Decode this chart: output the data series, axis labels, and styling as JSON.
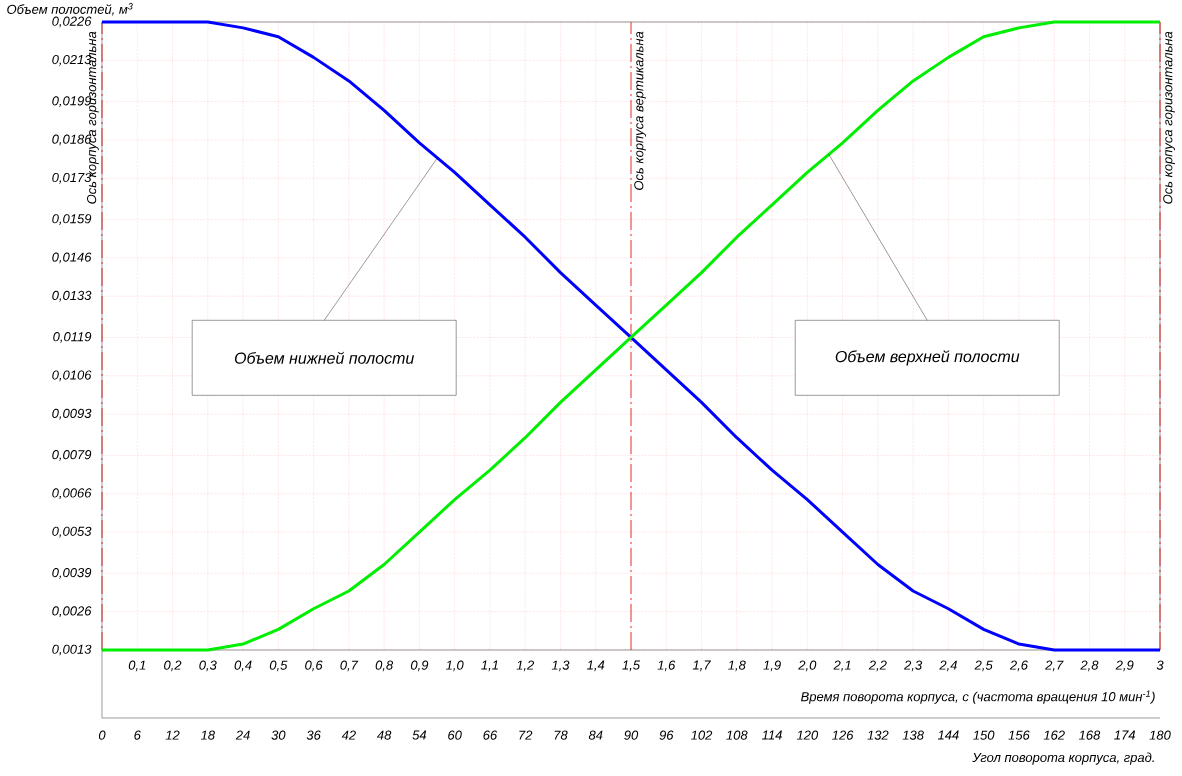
{
  "chart_data": {
    "type": "line",
    "xlabel": "Время поворота корпуса, с (частота вращения 10 мин$^{-1}$)",
    "ylabel": "Объем полостей, м$^{3}$",
    "x2label": "Угол поворота корпуса, град.",
    "x": [
      0,
      0.1,
      0.2,
      0.3,
      0.4,
      0.5,
      0.6,
      0.7,
      0.8,
      0.9,
      1.0,
      1.1,
      1.2,
      1.3,
      1.4,
      1.5,
      1.6,
      1.7,
      1.8,
      1.9,
      2.0,
      2.1,
      2.2,
      2.3,
      2.4,
      2.5,
      2.6,
      2.7,
      2.8,
      2.9,
      3.0
    ],
    "series": [
      {
        "color": "#0000ff",
        "values": [
          0.0226,
          0.0226,
          0.0226,
          0.0226,
          0.0224,
          0.0221,
          0.0214,
          0.0206,
          0.0196,
          0.0185,
          0.0175,
          0.0164,
          0.0153,
          0.0141,
          0.013,
          0.0119,
          0.0108,
          0.0097,
          0.0085,
          0.0074,
          0.0064,
          0.0053,
          0.0042,
          0.0033,
          0.0027,
          0.002,
          0.0015,
          0.0013,
          0.0013,
          0.0013,
          0.0013
        ]
      },
      {
        "color": "#00ee00",
        "values": [
          0.0013,
          0.0013,
          0.0013,
          0.0013,
          0.0015,
          0.002,
          0.0027,
          0.0033,
          0.0042,
          0.0053,
          0.0064,
          0.0074,
          0.0085,
          0.0097,
          0.0108,
          0.0119,
          0.013,
          0.0141,
          0.0153,
          0.0164,
          0.0175,
          0.0185,
          0.0196,
          0.0206,
          0.0214,
          0.0221,
          0.0224,
          0.0226,
          0.0226,
          0.0226,
          0.0226
        ]
      }
    ],
    "xlim": [
      0,
      3
    ],
    "ylim": [
      0.0013,
      0.0226
    ],
    "xticks": [
      {
        "value": 0.1,
        "label": "0,1"
      },
      {
        "value": 0.2,
        "label": "0,2"
      },
      {
        "value": 0.3,
        "label": "0,3"
      },
      {
        "value": 0.4,
        "label": "0,4"
      },
      {
        "value": 0.5,
        "label": "0,5"
      },
      {
        "value": 0.6,
        "label": "0,6"
      },
      {
        "value": 0.7,
        "label": "0,7"
      },
      {
        "value": 0.8,
        "label": "0,8"
      },
      {
        "value": 0.9,
        "label": "0,9"
      },
      {
        "value": 1.0,
        "label": "1,0"
      },
      {
        "value": 1.1,
        "label": "1,1"
      },
      {
        "value": 1.2,
        "label": "1,2"
      },
      {
        "value": 1.3,
        "label": "1,3"
      },
      {
        "value": 1.4,
        "label": "1,4"
      },
      {
        "value": 1.5,
        "label": "1,5"
      },
      {
        "value": 1.6,
        "label": "1,6"
      },
      {
        "value": 1.7,
        "label": "1,7"
      },
      {
        "value": 1.8,
        "label": "1,8"
      },
      {
        "value": 1.9,
        "label": "1,9"
      },
      {
        "value": 2.0,
        "label": "2,0"
      },
      {
        "value": 2.1,
        "label": "2,1"
      },
      {
        "value": 2.2,
        "label": "2,2"
      },
      {
        "value": 2.3,
        "label": "2,3"
      },
      {
        "value": 2.4,
        "label": "2,4"
      },
      {
        "value": 2.5,
        "label": "2,5"
      },
      {
        "value": 2.6,
        "label": "2,6"
      },
      {
        "value": 2.7,
        "label": "2,7"
      },
      {
        "value": 2.8,
        "label": "2,8"
      },
      {
        "value": 2.9,
        "label": "2,9"
      },
      {
        "value": 3,
        "label": "3"
      }
    ],
    "yticks": [
      {
        "value": 0.0013,
        "label": "0,0013"
      },
      {
        "value": 0.0026,
        "label": "0,0026"
      },
      {
        "value": 0.0039,
        "label": "0,0039"
      },
      {
        "value": 0.0053,
        "label": "0,0053"
      },
      {
        "value": 0.0066,
        "label": "0,0066"
      },
      {
        "value": 0.0079,
        "label": "0,0079"
      },
      {
        "value": 0.0093,
        "label": "0,0093"
      },
      {
        "value": 0.0106,
        "label": "0,0106"
      },
      {
        "value": 0.0119,
        "label": "0,0119"
      },
      {
        "value": 0.0133,
        "label": "0,0133"
      },
      {
        "value": 0.0146,
        "label": "0,0146"
      },
      {
        "value": 0.0159,
        "label": "0,0159"
      },
      {
        "value": 0.0173,
        "label": "0,0173"
      },
      {
        "value": 0.0186,
        "label": "0,0186"
      },
      {
        "value": 0.0199,
        "label": "0,0199"
      },
      {
        "value": 0.0213,
        "label": "0,0213"
      },
      {
        "value": 0.0226,
        "label": "0,0226"
      }
    ],
    "x2lim": [
      0,
      180
    ],
    "x2ticks": [
      0,
      6,
      12,
      18,
      24,
      30,
      36,
      42,
      48,
      54,
      60,
      66,
      72,
      78,
      84,
      90,
      96,
      102,
      108,
      114,
      120,
      126,
      132,
      138,
      144,
      150,
      156,
      162,
      168,
      174,
      180
    ],
    "grid": true,
    "line_style": "solid",
    "ref_lines": [
      {
        "axis": "x",
        "value": 0,
        "label": "Ось корпуса горизонтальна",
        "color": "#e00000",
        "line_style": "dashed"
      },
      {
        "axis": "x",
        "value": 1.5,
        "label": "Ось корпуса вертикальна",
        "color": "#e00000",
        "line_style": "dashed"
      },
      {
        "axis": "x",
        "value": 3,
        "label": "Ось корпуса горизонтальна",
        "color": "#e00000",
        "line_style": "dashed"
      }
    ],
    "annotations": [
      "Объем нижней полости",
      "Объем верхней полости"
    ]
  }
}
